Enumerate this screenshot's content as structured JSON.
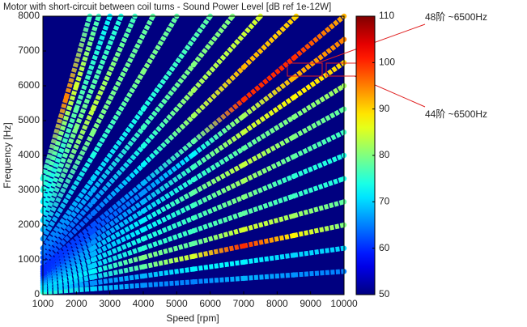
{
  "chart_data": {
    "type": "campbell",
    "title": "Motor with short-circuit between coil turns - Sound Power Level [dB ref 1e-12W]",
    "xlabel": "Speed [rpm]",
    "ylabel": "Frequency [Hz]",
    "xlim": [
      1000,
      10000
    ],
    "ylim": [
      0,
      8000
    ],
    "xticks": [
      1000,
      2000,
      3000,
      4000,
      5000,
      6000,
      7000,
      8000,
      9000,
      10000
    ],
    "yticks": [
      0,
      1000,
      2000,
      3000,
      4000,
      5000,
      6000,
      7000,
      8000
    ],
    "clim": [
      50,
      110
    ],
    "cticks": [
      50,
      60,
      70,
      80,
      90,
      100,
      110
    ],
    "annotations": [
      "48阶 ~6500Hz",
      "44阶 ~6500Hz"
    ],
    "series": [
      {
        "x": [
          1000,
          2500,
          4000,
          5500,
          7000,
          8500,
          10000
        ],
        "values": [
          67,
          167,
          267,
          367,
          467,
          567,
          667
        ],
        "levels": [
          75,
          70,
          66,
          65,
          68,
          66,
          65
        ]
      },
      {
        "x": [
          1000,
          2500,
          4000,
          5500,
          7000,
          8500,
          10000
        ],
        "values": [
          133,
          333,
          533,
          733,
          933,
          1133,
          1333
        ],
        "levels": [
          72,
          66,
          68,
          72,
          72,
          70,
          70
        ]
      },
      {
        "x": [
          1000,
          2500,
          4000,
          5500,
          7000,
          8500,
          10000
        ],
        "values": [
          200,
          500,
          800,
          1100,
          1400,
          1700,
          2000
        ],
        "levels": [
          70,
          70,
          78,
          85,
          100,
          88,
          80
        ]
      },
      {
        "x": [
          1000,
          2500,
          4000,
          5500,
          7000,
          8500,
          10000
        ],
        "values": [
          267,
          667,
          1067,
          1467,
          1867,
          2267,
          2667
        ],
        "levels": [
          70,
          72,
          80,
          78,
          85,
          82,
          78
        ]
      },
      {
        "x": [
          1000,
          2500,
          4000,
          5500,
          7000,
          8500,
          10000
        ],
        "values": [
          333,
          833,
          1333,
          1833,
          2333,
          2833,
          3333
        ],
        "levels": [
          68,
          70,
          75,
          76,
          78,
          76,
          74
        ]
      },
      {
        "x": [
          1000,
          2500,
          4000,
          5500,
          7000,
          8500,
          10000
        ],
        "values": [
          400,
          1000,
          1600,
          2200,
          2800,
          3400,
          4000
        ],
        "levels": [
          66,
          70,
          74,
          76,
          80,
          75,
          74
        ]
      },
      {
        "x": [
          1000,
          2500,
          4000,
          5500,
          7000,
          8500,
          10000
        ],
        "values": [
          467,
          1167,
          1867,
          2567,
          3267,
          3967,
          4667
        ],
        "levels": [
          64,
          68,
          72,
          76,
          82,
          78,
          76
        ]
      },
      {
        "x": [
          1000,
          2500,
          4000,
          5500,
          7000,
          8500,
          10000
        ],
        "values": [
          533,
          1333,
          2133,
          2933,
          3733,
          4533,
          5333
        ],
        "levels": [
          62,
          68,
          72,
          78,
          84,
          80,
          78
        ]
      },
      {
        "x": [
          1000,
          2500,
          4000,
          5500,
          7000,
          8500,
          10000
        ],
        "values": [
          600,
          1500,
          2400,
          3300,
          4200,
          5100,
          6000
        ],
        "levels": [
          60,
          66,
          70,
          75,
          78,
          80,
          82
        ]
      },
      {
        "x": [
          1000,
          2500,
          4000,
          5500,
          7000,
          8500,
          10000
        ],
        "values": [
          667,
          1667,
          2667,
          3667,
          4667,
          5667,
          6667
        ],
        "levels": [
          60,
          64,
          68,
          76,
          84,
          88,
          90
        ]
      },
      {
        "x": [
          1000,
          2500,
          4000,
          5500,
          7000,
          8500,
          10000
        ],
        "values": [
          733,
          1833,
          2933,
          4033,
          5133,
          6233,
          7333
        ],
        "levels": [
          60,
          62,
          66,
          72,
          82,
          92,
          95
        ]
      },
      {
        "x": [
          1000,
          2500,
          4000,
          5500,
          7000,
          8500,
          10000
        ],
        "values": [
          800,
          2000,
          3200,
          4400,
          5600,
          6800,
          8000
        ],
        "levels": [
          60,
          62,
          68,
          78,
          100,
          100,
          92
        ]
      },
      {
        "x": [
          1000,
          2500,
          4000,
          5500,
          7000,
          8571
        ],
        "values": [
          933,
          2333,
          3733,
          5133,
          6533,
          8000
        ],
        "levels": [
          62,
          64,
          72,
          82,
          92,
          90
        ]
      },
      {
        "x": [
          1000,
          2500,
          4000,
          5500,
          7500
        ],
        "values": [
          1067,
          2667,
          4267,
          5867,
          8000
        ],
        "levels": [
          62,
          66,
          74,
          82,
          85
        ]
      },
      {
        "x": [
          1000,
          2500,
          4000,
          5500,
          6667
        ],
        "values": [
          1200,
          3000,
          4800,
          6600,
          8000
        ],
        "levels": [
          64,
          68,
          76,
          80,
          80
        ]
      },
      {
        "x": [
          1000,
          2500,
          4000,
          6000
        ],
        "values": [
          1333,
          3333,
          5333,
          8000
        ],
        "levels": [
          64,
          70,
          74,
          78
        ]
      },
      {
        "x": [
          1000,
          2500,
          4000,
          5000
        ],
        "values": [
          1600,
          4000,
          6400,
          8000
        ],
        "levels": [
          66,
          74,
          80,
          78
        ]
      },
      {
        "x": [
          1000,
          2500,
          4286
        ],
        "values": [
          1867,
          4667,
          8000
        ],
        "levels": [
          68,
          80,
          78
        ]
      },
      {
        "x": [
          1000,
          2500,
          3750
        ],
        "values": [
          2133,
          5333,
          8000
        ],
        "levels": [
          70,
          84,
          76
        ]
      },
      {
        "x": [
          1000,
          2000,
          3333
        ],
        "values": [
          2400,
          4800,
          8000
        ],
        "levels": [
          72,
          80,
          74
        ]
      },
      {
        "x": [
          1000,
          2000,
          3000
        ],
        "values": [
          2667,
          5333,
          8000
        ],
        "levels": [
          72,
          78,
          72
        ]
      },
      {
        "x": [
          1000,
          2000,
          2667
        ],
        "values": [
          3000,
          6000,
          8000
        ],
        "levels": [
          74,
          85,
          76
        ]
      },
      {
        "x": [
          1000,
          1700,
          2400
        ],
        "values": [
          3333,
          5667,
          8000
        ],
        "levels": [
          74,
          95,
          76
        ]
      }
    ]
  }
}
